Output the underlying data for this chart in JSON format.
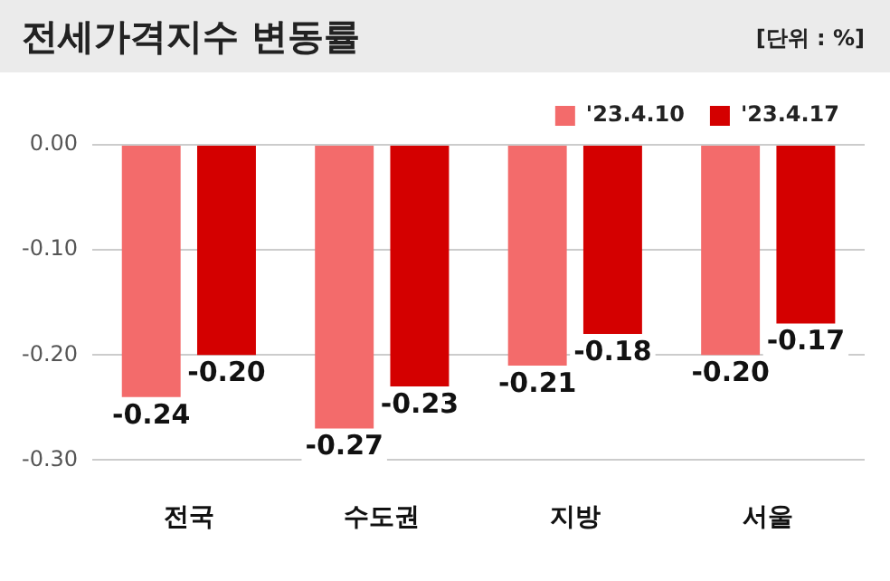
{
  "chart_data": {
    "type": "bar",
    "title": "전세가격지수 변동률",
    "annotations": [
      "[단위 : %]"
    ],
    "categories": [
      "전국",
      "수도권",
      "지방",
      "서울"
    ],
    "series": [
      {
        "name": "'23.4.10",
        "color": "#f36b6b",
        "values": [
          -0.24,
          -0.27,
          -0.21,
          -0.2
        ],
        "value_labels": [
          "-0.24",
          "-0.27",
          "-0.21",
          "-0.20"
        ]
      },
      {
        "name": "'23.4.17",
        "color": "#d40000",
        "values": [
          -0.2,
          -0.23,
          -0.18,
          -0.17
        ],
        "value_labels": [
          "-0.20",
          "-0.23",
          "-0.18",
          "-0.17"
        ]
      }
    ],
    "ylim": [
      -0.3,
      0
    ],
    "yticks": [
      {
        "value": 0,
        "label": "0.00"
      },
      {
        "value": -0.1,
        "label": "-0.10"
      },
      {
        "value": -0.2,
        "label": "-0.20"
      },
      {
        "value": -0.3,
        "label": "-0.30"
      }
    ],
    "grid": "y",
    "legend": "top right"
  }
}
